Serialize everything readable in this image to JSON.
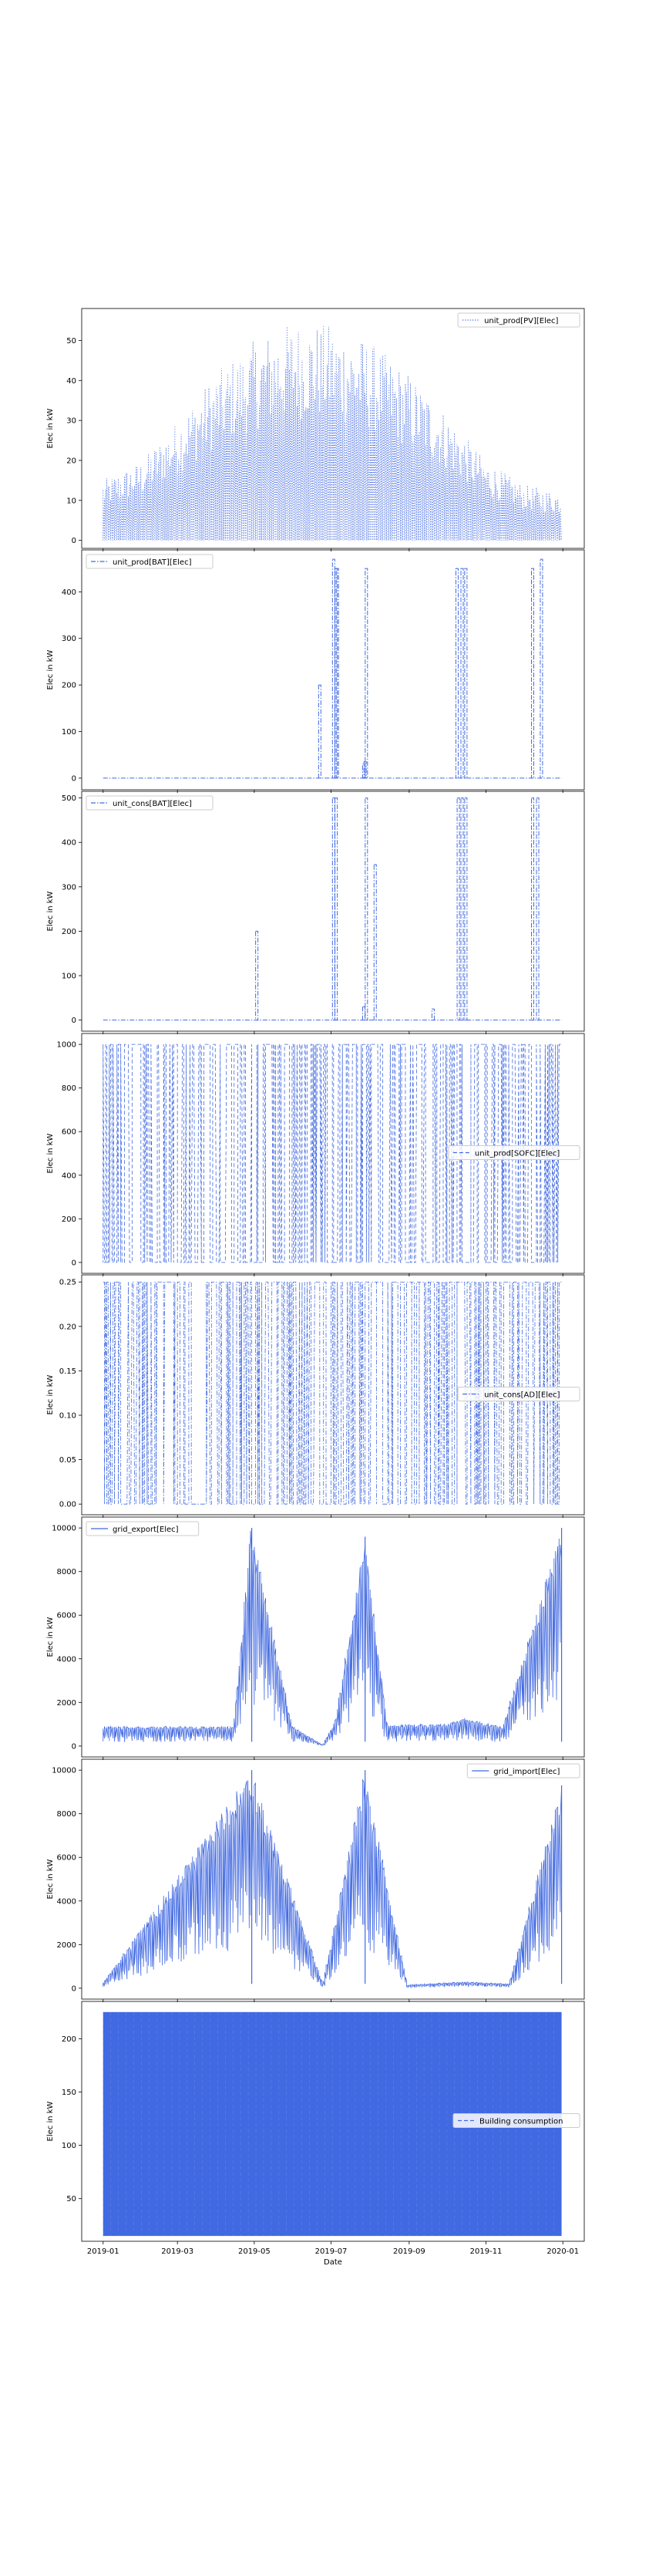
{
  "chart_data": [
    {
      "type": "line",
      "ylabel": "Elec in kW",
      "ylim": [
        -2,
        58
      ],
      "yticks": [
        0,
        10,
        20,
        30,
        40,
        50
      ],
      "legend": {
        "label": "unit_prod[PV][Elec]",
        "position": "upper right",
        "linestyle": "dotted"
      },
      "linestyle": "dotted",
      "shape": "pv",
      "series": [
        {
          "name": "unit_prod[PV][Elec]",
          "x": [
            "2019-01-01",
            "2019-02-01",
            "2019-03-01",
            "2019-04-01",
            "2019-05-01",
            "2019-06-01",
            "2019-07-01",
            "2019-08-01",
            "2019-09-01",
            "2019-10-01",
            "2019-11-01",
            "2019-12-01",
            "2019-12-31"
          ],
          "y": [
            15,
            20,
            30,
            42,
            50,
            55,
            54,
            50,
            42,
            32,
            20,
            14,
            12
          ]
        }
      ]
    },
    {
      "type": "line",
      "ylabel": "Elec in kW",
      "ylim": [
        -25,
        490
      ],
      "yticks": [
        0,
        100,
        200,
        300,
        400
      ],
      "legend": {
        "label": "unit_prod[BAT][Elec]",
        "position": "upper left",
        "linestyle": "dashdot"
      },
      "linestyle": "dashdot",
      "baseline": 0,
      "series": [
        {
          "name": "unit_prod[BAT][Elec]",
          "x": [
            "2019-06-22",
            "2019-07-03",
            "2019-07-05",
            "2019-07-06",
            "2019-07-27",
            "2019-07-28",
            "2019-07-29",
            "2019-10-09",
            "2019-10-13",
            "2019-10-16",
            "2019-12-08",
            "2019-12-15"
          ],
          "y": [
            200,
            470,
            450,
            450,
            30,
            35,
            450,
            450,
            450,
            450,
            450,
            470
          ]
        }
      ]
    },
    {
      "type": "line",
      "ylabel": "Elec in kW",
      "ylim": [
        -25,
        515
      ],
      "yticks": [
        0,
        100,
        200,
        300,
        400,
        500
      ],
      "legend": {
        "label": "unit_cons[BAT][Elec]",
        "position": "upper left",
        "linestyle": "dashdot"
      },
      "linestyle": "dashdot",
      "baseline": 0,
      "series": [
        {
          "name": "unit_cons[BAT][Elec]",
          "x": [
            "2019-05-03",
            "2019-07-03",
            "2019-07-05",
            "2019-07-27",
            "2019-07-29",
            "2019-08-05",
            "2019-09-20",
            "2019-10-10",
            "2019-10-13",
            "2019-10-16",
            "2019-12-08",
            "2019-12-12"
          ],
          "y": [
            200,
            500,
            500,
            30,
            500,
            350,
            25,
            500,
            500,
            500,
            500,
            500
          ]
        }
      ]
    },
    {
      "type": "line",
      "ylabel": "Elec in kW",
      "ylim": [
        -50,
        1050
      ],
      "yticks": [
        0,
        200,
        400,
        600,
        800,
        1000
      ],
      "legend": {
        "label": "unit_prod[SOFC][Elec]",
        "position": "center right",
        "linestyle": "dashed"
      },
      "linestyle": "dashed",
      "series": [
        {
          "name": "unit_prod[SOFC][Elec]",
          "values_range": [
            0,
            1000
          ],
          "x_range": [
            "2019-01-01",
            "2019-12-31"
          ]
        }
      ]
    },
    {
      "type": "line",
      "ylabel": "Elec in kW",
      "ylim": [
        -0.012,
        0.258
      ],
      "yticks": [
        0.0,
        0.05,
        0.1,
        0.15,
        0.2,
        0.25
      ],
      "legend": {
        "label": "unit_cons[AD][Elec]",
        "position": "center right",
        "linestyle": "dashdot"
      },
      "linestyle": "dashdot",
      "series": [
        {
          "name": "unit_cons[AD][Elec]",
          "values_range": [
            0,
            0.25
          ],
          "x_range": [
            "2019-01-01",
            "2019-12-31"
          ]
        }
      ]
    },
    {
      "type": "line",
      "ylabel": "Elec in kW",
      "ylim": [
        -500,
        10500
      ],
      "yticks": [
        0,
        2000,
        4000,
        6000,
        8000,
        10000
      ],
      "legend": {
        "label": "grid_export[Elec]",
        "position": "upper left",
        "linestyle": "solid"
      },
      "linestyle": "solid",
      "series": [
        {
          "name": "grid_export[Elec]",
          "x": [
            "2019-01-01",
            "2019-02-15",
            "2019-04-15",
            "2019-04-29",
            "2019-06-01",
            "2019-06-25",
            "2019-07-05",
            "2019-07-28",
            "2019-08-15",
            "2019-10-01",
            "2019-10-15",
            "2019-11-15",
            "2019-12-31"
          ],
          "y": [
            900,
            900,
            900,
            10000,
            900,
            50,
            1200,
            9600,
            1000,
            1000,
            1300,
            900,
            10000
          ]
        }
      ]
    },
    {
      "type": "line",
      "ylabel": "Elec in kW",
      "ylim": [
        -500,
        10500
      ],
      "yticks": [
        0,
        2000,
        4000,
        6000,
        8000,
        10000
      ],
      "legend": {
        "label": "grid_import[Elec]",
        "position": "upper right",
        "linestyle": "solid"
      },
      "linestyle": "solid",
      "series": [
        {
          "name": "grid_import[Elec]",
          "x": [
            "2019-01-01",
            "2019-04-29",
            "2019-06-25",
            "2019-07-28",
            "2019-08-31",
            "2019-10-15",
            "2019-11-20",
            "2019-12-31"
          ],
          "y": [
            200,
            10000,
            200,
            10000,
            150,
            300,
            200,
            9300
          ]
        }
      ]
    },
    {
      "type": "area",
      "ylabel": "Elec in kW",
      "ylim": [
        10,
        235
      ],
      "yticks": [
        50,
        100,
        150,
        200
      ],
      "legend": {
        "label": "Building consumption",
        "position": "center right",
        "linestyle": "dashed"
      },
      "linestyle": "dashed",
      "xlabel": "Date",
      "xticks": [
        "2019-01",
        "2019-03",
        "2019-05",
        "2019-07",
        "2019-09",
        "2019-11",
        "2020-01"
      ],
      "xlim": [
        "2018-12-15",
        "2020-01-18"
      ],
      "series": [
        {
          "name": "Building consumption",
          "values_range": [
            15,
            225
          ],
          "x_range": [
            "2019-01-01",
            "2019-12-31"
          ]
        }
      ]
    }
  ],
  "colors": {
    "line": "#4169e1",
    "axis": "#000000",
    "legend_border": "#cccccc"
  }
}
